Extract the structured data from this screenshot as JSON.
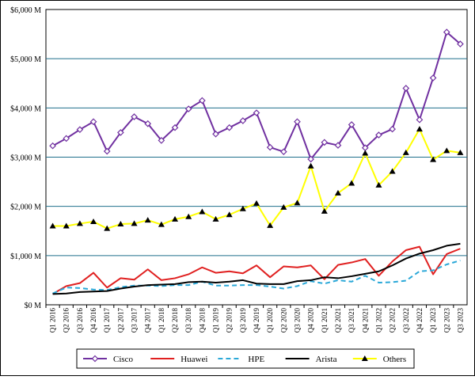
{
  "chart_data": {
    "type": "line",
    "categories": [
      "Q1 2016",
      "Q2 2016",
      "Q3 2016",
      "Q4 2016",
      "Q1 2017",
      "Q2 2017",
      "Q3 2017",
      "Q4 2017",
      "Q1 2018",
      "Q2 2018",
      "Q3 2018",
      "Q4 2018",
      "Q1 2019",
      "Q2 2019",
      "Q3 2019",
      "Q4 2019",
      "Q1 2020",
      "Q2 2020",
      "Q3 2020",
      "Q4 2020",
      "Q1 2021",
      "Q2 2021",
      "Q3 2021",
      "Q4 2021",
      "Q1 2022",
      "Q2 2022",
      "Q3 2022",
      "Q4 2022",
      "Q1 2023",
      "Q2 2023",
      "Q3 2023"
    ],
    "ylim": [
      0,
      6000
    ],
    "y_ticks": [
      0,
      1000,
      2000,
      3000,
      4000,
      5000,
      6000
    ],
    "y_tick_labels": [
      "$0 M",
      "$1,000 M",
      "$2,000 M",
      "$3,000 M",
      "$4,000 M",
      "$5,000 M",
      "$6,000 M"
    ],
    "grid": "horizontal",
    "legend_position": "bottom",
    "series": [
      {
        "name": "Cisco",
        "color": "#7030a0",
        "marker": "diamond",
        "dash": "solid",
        "values": [
          3230,
          3380,
          3560,
          3720,
          3120,
          3500,
          3820,
          3680,
          3340,
          3600,
          3980,
          4150,
          3470,
          3600,
          3740,
          3900,
          3200,
          3110,
          3720,
          2960,
          3300,
          3240,
          3660,
          3190,
          3450,
          3570,
          4400,
          3760,
          4610,
          5540,
          5300
        ]
      },
      {
        "name": "Huawei",
        "color": "#e02020",
        "marker": "none",
        "dash": "solid",
        "values": [
          220,
          380,
          440,
          650,
          350,
          540,
          510,
          720,
          500,
          540,
          620,
          760,
          650,
          680,
          640,
          800,
          560,
          780,
          760,
          800,
          520,
          810,
          860,
          930,
          590,
          880,
          1110,
          1180,
          620,
          1030,
          1140
        ]
      },
      {
        "name": "HPE",
        "color": "#2aa8d8",
        "marker": "none",
        "dash": "dashed",
        "values": [
          230,
          350,
          340,
          310,
          300,
          360,
          390,
          390,
          380,
          400,
          400,
          470,
          390,
          390,
          400,
          400,
          370,
          330,
          380,
          480,
          430,
          500,
          470,
          590,
          450,
          460,
          490,
          680,
          700,
          820,
          900
        ]
      },
      {
        "name": "Arista",
        "color": "#000000",
        "marker": "none",
        "dash": "solid",
        "values": [
          220,
          230,
          260,
          270,
          280,
          330,
          370,
          400,
          410,
          420,
          460,
          470,
          450,
          470,
          500,
          430,
          420,
          420,
          480,
          500,
          560,
          540,
          580,
          630,
          680,
          800,
          940,
          1040,
          1110,
          1200,
          1240
        ]
      },
      {
        "name": "Others",
        "color": "#ffff00",
        "marker": "triangle",
        "dash": "solid",
        "values": [
          1600,
          1600,
          1650,
          1690,
          1550,
          1640,
          1650,
          1720,
          1630,
          1740,
          1790,
          1890,
          1740,
          1830,
          1950,
          2060,
          1610,
          1980,
          2070,
          2820,
          1900,
          2270,
          2470,
          3080,
          2430,
          2710,
          3090,
          3570,
          2950,
          3130,
          3090
        ]
      }
    ]
  }
}
